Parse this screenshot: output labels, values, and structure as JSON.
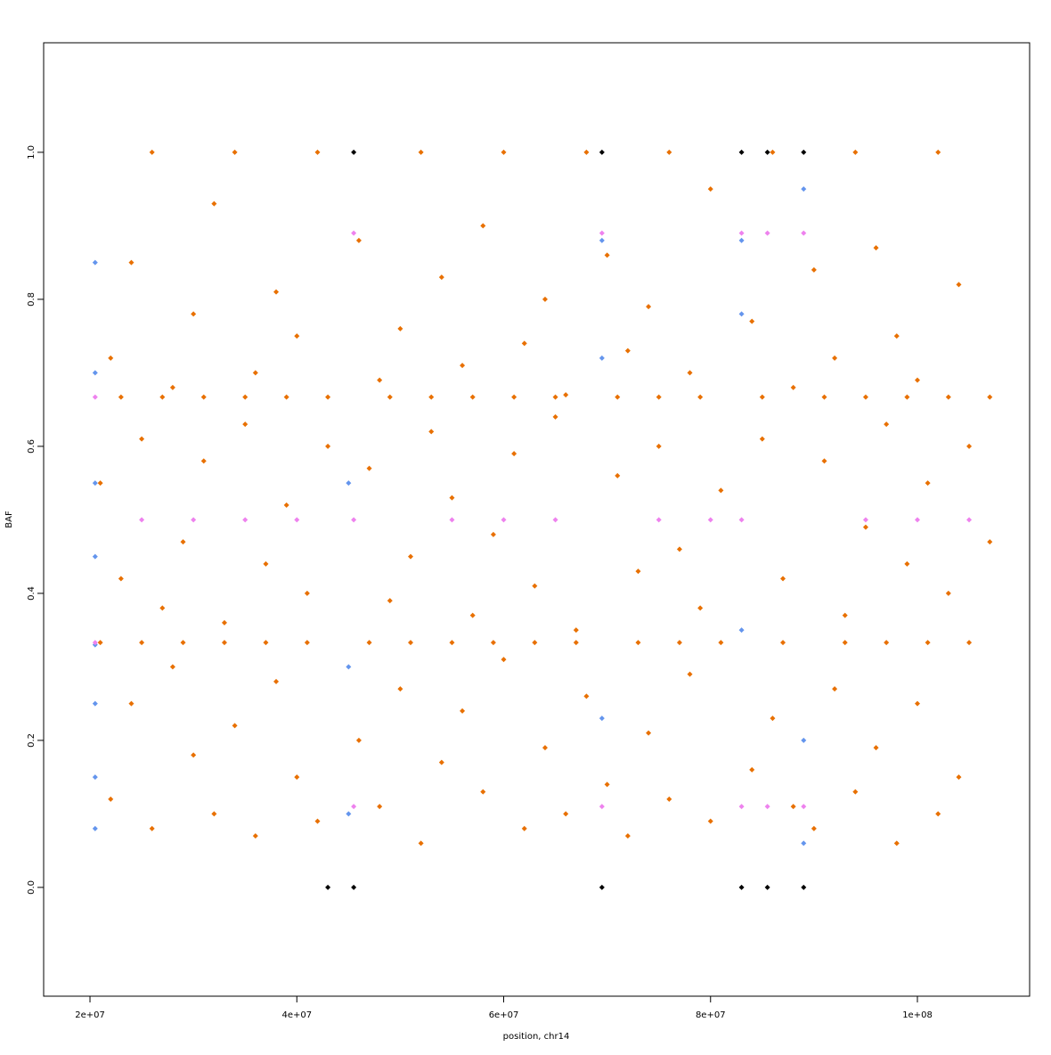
{
  "chart_data": {
    "type": "scatter",
    "x_label": "position, chr14",
    "y_label": "BAF",
    "xlim": [
      15520000,
      110850000
    ],
    "ylim": [
      -0.148,
      1.149
    ],
    "xticks": [
      {
        "value": 20000000,
        "label": "2e+07"
      },
      {
        "value": 40000000,
        "label": "4e+07"
      },
      {
        "value": 60000000,
        "label": "6e+07"
      },
      {
        "value": 80000000,
        "label": "8e+07"
      },
      {
        "value": 100000000,
        "label": "1e+08"
      }
    ],
    "yticks": [
      {
        "value": 0,
        "label": "0.0"
      },
      0.2,
      0.4,
      0.6,
      0.8,
      {
        "value": 1,
        "label": "1.0"
      }
    ],
    "grid": false,
    "series": [
      {
        "color": "#e87000",
        "x": [
          21000000.0,
          23000000.0,
          25000000.0,
          27000000.0,
          29000000.0,
          31000000.0,
          33000000.0,
          35000000.0,
          37000000.0,
          39000000.0,
          41000000.0,
          43000000.0,
          47000000.0,
          49000000.0,
          51000000.0,
          53000000.0,
          55000000.0,
          57000000.0,
          59000000.0,
          61000000.0,
          63000000.0,
          65000000.0,
          67000000.0,
          71000000.0,
          73000000.0,
          75000000.0,
          77000000.0,
          79000000.0,
          81000000.0,
          85000000.0,
          87000000.0,
          91000000.0,
          93000000.0,
          95000000.0,
          97000000.0,
          99000000.0,
          101000000.0,
          103000000.0,
          105000000.0,
          107000000.0,
          22000000.0,
          24000000.0,
          26000000.0,
          28000000.0,
          30000000.0,
          32000000.0,
          34000000.0,
          36000000.0,
          38000000.0,
          40000000.0,
          42000000.0,
          46000000.0,
          48000000.0,
          50000000.0,
          52000000.0,
          54000000.0,
          56000000.0,
          58000000.0,
          60000000.0,
          62000000.0,
          64000000.0,
          66000000.0,
          68000000.0,
          70000000.0,
          72000000.0,
          74000000.0,
          76000000.0,
          78000000.0,
          80000000.0,
          84000000.0,
          86000000.0,
          88000000.0,
          90000000.0,
          92000000.0,
          94000000.0,
          96000000.0,
          98000000.0,
          100000000.0,
          102000000.0,
          104000000.0,
          22000000.0,
          24000000.0,
          26000000.0,
          28000000.0,
          30000000.0,
          32000000.0,
          34000000.0,
          36000000.0,
          38000000.0,
          40000000.0,
          42000000.0,
          46000000.0,
          48000000.0,
          50000000.0,
          52000000.0,
          54000000.0,
          56000000.0,
          58000000.0,
          60000000.0,
          62000000.0,
          64000000.0,
          66000000.0,
          68000000.0,
          70000000.0,
          72000000.0,
          74000000.0,
          76000000.0,
          78000000.0,
          80000000.0,
          84000000.0,
          86000000.0,
          88000000.0,
          90000000.0,
          92000000.0,
          94000000.0,
          96000000.0,
          98000000.0,
          100000000.0,
          102000000.0,
          104000000.0,
          21000000.0,
          23000000.0,
          25000000.0,
          27000000.0,
          29000000.0,
          31000000.0,
          33000000.0,
          35000000.0,
          37000000.0,
          39000000.0,
          41000000.0,
          43000000.0,
          47000000.0,
          49000000.0,
          51000000.0,
          53000000.0,
          55000000.0,
          57000000.0,
          59000000.0,
          61000000.0,
          63000000.0,
          65000000.0,
          67000000.0,
          71000000.0,
          73000000.0,
          75000000.0,
          77000000.0,
          79000000.0,
          81000000.0,
          85000000.0,
          87000000.0,
          91000000.0,
          93000000.0,
          95000000.0,
          97000000.0,
          99000000.0,
          101000000.0,
          103000000.0,
          105000000.0,
          107000000.0
        ],
        "y": [
          0.55,
          0.42,
          0.61,
          0.38,
          0.47,
          0.58,
          0.36,
          0.63,
          0.44,
          0.52,
          0.4,
          0.6,
          0.57,
          0.39,
          0.45,
          0.62,
          0.53,
          0.37,
          0.48,
          0.59,
          0.41,
          0.64,
          0.35,
          0.56,
          0.43,
          0.6,
          0.46,
          0.38,
          0.54,
          0.61,
          0.42,
          0.58,
          0.37,
          0.49,
          0.63,
          0.44,
          0.55,
          0.4,
          0.6,
          0.47,
          0.12,
          0.25,
          0.08,
          0.3,
          0.18,
          0.1,
          0.22,
          0.07,
          0.28,
          0.15,
          0.09,
          0.2,
          0.11,
          0.27,
          0.06,
          0.17,
          0.24,
          0.13,
          0.31,
          0.08,
          0.19,
          0.1,
          0.26,
          0.14,
          0.07,
          0.21,
          0.12,
          0.29,
          0.09,
          0.16,
          0.23,
          0.11,
          0.08,
          0.27,
          0.13,
          0.19,
          0.06,
          0.25,
          0.1,
          0.15,
          0.72,
          0.85,
          1.0,
          0.68,
          0.78,
          0.93,
          1.0,
          0.7,
          0.81,
          0.75,
          1.0,
          0.88,
          0.69,
          0.76,
          1.0,
          0.83,
          0.71,
          0.9,
          1.0,
          0.74,
          0.8,
          0.67,
          1.0,
          0.86,
          0.73,
          0.79,
          1.0,
          0.7,
          0.95,
          0.77,
          1.0,
          0.68,
          0.84,
          0.72,
          1.0,
          0.87,
          0.75,
          0.69,
          1.0,
          0.82,
          0.333,
          0.667,
          0.333,
          0.667,
          0.333,
          0.667,
          0.333,
          0.667,
          0.333,
          0.667,
          0.333,
          0.667,
          0.333,
          0.667,
          0.333,
          0.667,
          0.333,
          0.667,
          0.333,
          0.667,
          0.333,
          0.667,
          0.333,
          0.667,
          0.333,
          0.667,
          0.333,
          0.667,
          0.333,
          0.667,
          0.333,
          0.667,
          0.333,
          0.667,
          0.333,
          0.667,
          0.333,
          0.667,
          0.333,
          0.667
        ]
      },
      {
        "color": "#6495ed",
        "x": [
          20500000.0,
          20500000.0,
          20500000.0,
          20500000.0,
          20500000.0,
          20500000.0,
          20500000.0,
          20500000.0,
          45000000.0,
          45000000.0,
          45000000.0,
          69500000.0,
          69500000.0,
          69500000.0,
          83000000.0,
          83000000.0,
          83000000.0,
          89000000.0,
          89000000.0,
          89000000.0
        ],
        "y": [
          0.85,
          0.7,
          0.55,
          0.45,
          0.33,
          0.25,
          0.15,
          0.08,
          0.55,
          0.3,
          0.1,
          0.72,
          0.23,
          0.88,
          0.78,
          0.35,
          0.88,
          0.95,
          0.2,
          0.06
        ]
      },
      {
        "color": "#ee82ee",
        "x": [
          20500000.0,
          20500000.0,
          30000000.0,
          40000000.0,
          45500000.0,
          45500000.0,
          45500000.0,
          55000000.0,
          65000000.0,
          69500000.0,
          69500000.0,
          75000000.0,
          83000000.0,
          83000000.0,
          83000000.0,
          85500000.0,
          85500000.0,
          89000000.0,
          89000000.0,
          95000000.0,
          105000000.0,
          25000000.0,
          35000000.0,
          60000000.0,
          80000000.0,
          100000000.0
        ],
        "y": [
          0.667,
          0.333,
          0.5,
          0.5,
          0.89,
          0.11,
          0.5,
          0.5,
          0.5,
          0.89,
          0.11,
          0.5,
          0.89,
          0.11,
          0.5,
          0.89,
          0.11,
          0.89,
          0.11,
          0.5,
          0.5,
          0.5,
          0.5,
          0.5,
          0.5,
          0.5
        ]
      },
      {
        "color": "#000000",
        "x": [
          43000000.0,
          45500000.0,
          45500000.0,
          69500000.0,
          69500000.0,
          83000000.0,
          83000000.0,
          85500000.0,
          85500000.0,
          89000000.0,
          89000000.0
        ],
        "y": [
          0,
          0,
          1,
          0,
          1,
          0,
          1,
          0,
          1,
          0,
          1
        ]
      }
    ]
  }
}
